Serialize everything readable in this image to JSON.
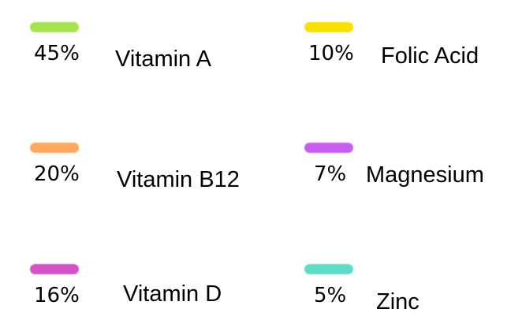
{
  "chart_data": {
    "type": "pie",
    "categories": [
      "Vitamin A",
      "Folic Acid",
      "Vitamin B12",
      "Magnesium",
      "Vitamin D",
      "Zinc"
    ],
    "values": [
      45,
      10,
      20,
      7,
      16,
      5
    ],
    "labels": [
      "45%",
      "10%",
      "20%",
      "7%",
      "16%",
      "5%"
    ],
    "colors": [
      "#a5e24f",
      "#f8e100",
      "#ffa860",
      "#c85ef0",
      "#d252c8",
      "#5fdcc6"
    ],
    "title": "",
    "legend": "grid-3x2"
  }
}
